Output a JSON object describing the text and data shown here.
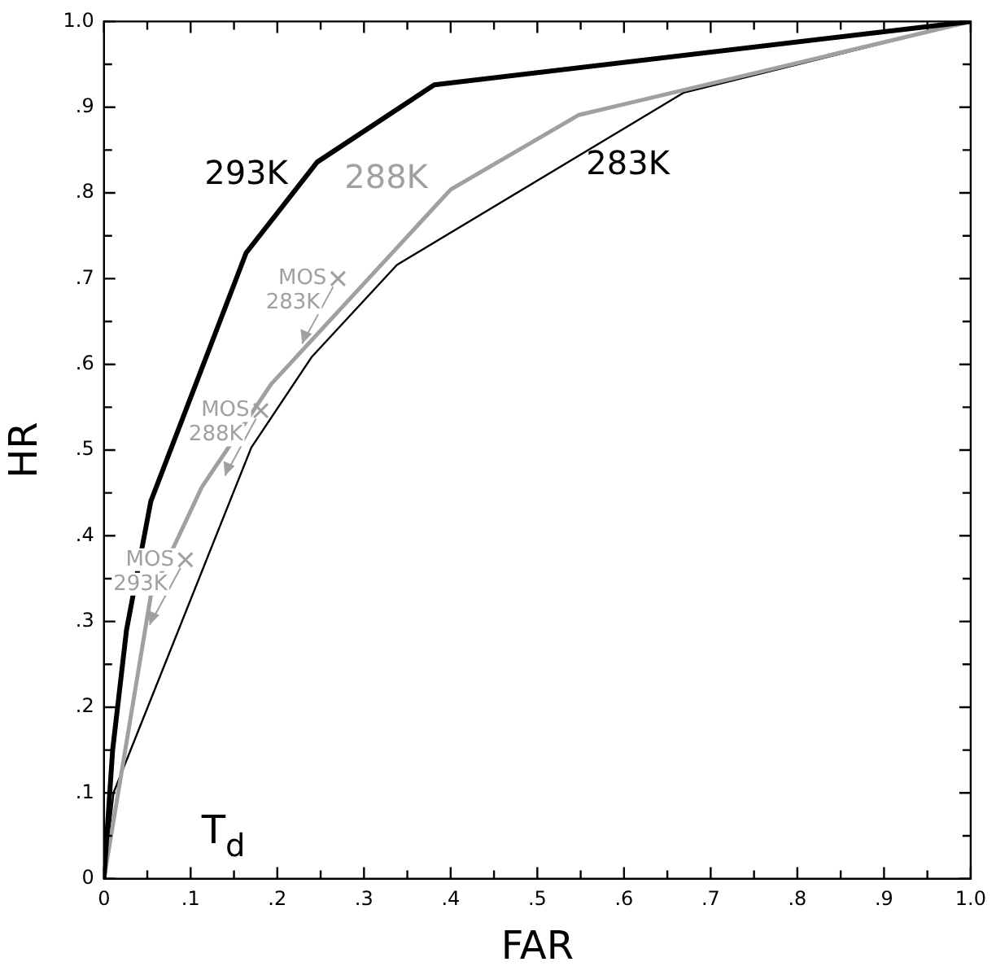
{
  "chart_data": {
    "type": "line",
    "xlabel": "FAR",
    "ylabel": "HR",
    "legend": false,
    "marker": "none",
    "grid": false,
    "xlim": [
      0,
      1
    ],
    "ylim": [
      0,
      1
    ],
    "xticks": [
      0,
      {
        "value": 0.05,
        "label": null
      },
      {
        "value": 0.1,
        "label": ".1"
      },
      {
        "value": 0.15,
        "label": null
      },
      {
        "value": 0.2,
        "label": ".2"
      },
      {
        "value": 0.25,
        "label": null
      },
      {
        "value": 0.3,
        "label": ".3"
      },
      {
        "value": 0.35,
        "label": null
      },
      {
        "value": 0.4,
        "label": ".4"
      },
      {
        "value": 0.45,
        "label": null
      },
      {
        "value": 0.5,
        "label": ".5"
      },
      {
        "value": 0.55,
        "label": null
      },
      {
        "value": 0.6,
        "label": ".6"
      },
      {
        "value": 0.65,
        "label": null
      },
      {
        "value": 0.7,
        "label": ".7"
      },
      {
        "value": 0.75,
        "label": null
      },
      {
        "value": 0.8,
        "label": ".8"
      },
      {
        "value": 0.85,
        "label": null
      },
      {
        "value": 0.9,
        "label": ".9"
      },
      {
        "value": 0.95,
        "label": null
      },
      {
        "value": 1,
        "label": "1.0"
      }
    ],
    "yticks": [
      0,
      {
        "value": 0.05,
        "label": null
      },
      {
        "value": 0.1,
        "label": ".1"
      },
      {
        "value": 0.15,
        "label": null
      },
      {
        "value": 0.2,
        "label": ".2"
      },
      {
        "value": 0.25,
        "label": null
      },
      {
        "value": 0.3,
        "label": ".3"
      },
      {
        "value": 0.35,
        "label": null
      },
      {
        "value": 0.4,
        "label": ".4"
      },
      {
        "value": 0.45,
        "label": null
      },
      {
        "value": 0.5,
        "label": ".5"
      },
      {
        "value": 0.55,
        "label": null
      },
      {
        "value": 0.6,
        "label": ".6"
      },
      {
        "value": 0.65,
        "label": null
      },
      {
        "value": 0.7,
        "label": ".7"
      },
      {
        "value": 0.75,
        "label": null
      },
      {
        "value": 0.8,
        "label": ".8"
      },
      {
        "value": 0.85,
        "label": null
      },
      {
        "value": 0.9,
        "label": ".9"
      },
      {
        "value": 0.95,
        "label": null
      },
      {
        "value": 1,
        "label": "1.0"
      }
    ],
    "series": [
      {
        "name": "293K",
        "color": "#000000",
        "x": [
          0,
          0.01,
          0.026,
          0.054,
          0.164,
          0.246,
          0.381,
          1
        ],
        "values": [
          0,
          0.15,
          0.29,
          0.44,
          0.73,
          0.836,
          0.926,
          1
        ]
      },
      {
        "name": "288K",
        "color": "#a0a0a0",
        "x": [
          0,
          0.054,
          0.113,
          0.193,
          0.4,
          0.548,
          0.669,
          1
        ],
        "values": [
          0,
          0.33,
          0.457,
          0.577,
          0.804,
          0.891,
          0.92,
          1
        ]
      },
      {
        "name": "283K",
        "color": "#000000",
        "x": [
          0,
          0.011,
          0.17,
          0.24,
          0.338,
          0.669,
          1
        ],
        "values": [
          0,
          0.1,
          0.503,
          0.609,
          0.716,
          0.917,
          1
        ]
      },
      {
        "type": "scatter",
        "marker": "cross",
        "color": "#a0a0a0",
        "x": [
          0.27,
          0.181,
          0.094
        ],
        "values": [
          0.7,
          0.546,
          0.372
        ]
      }
    ],
    "annotations": [
      {
        "text": "MOS 283K",
        "x": 0.27,
        "y": 0.7
      },
      {
        "text": "MOS 288K",
        "x": 0.181,
        "y": 0.546
      },
      {
        "text": "MOS 293K",
        "x": 0.094,
        "y": 0.372
      },
      "T$_{d}$"
    ]
  }
}
